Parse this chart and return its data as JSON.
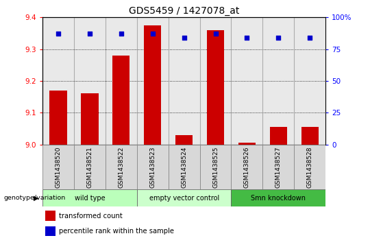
{
  "title": "GDS5459 / 1427078_at",
  "samples": [
    "GSM1438520",
    "GSM1438521",
    "GSM1438522",
    "GSM1438523",
    "GSM1438524",
    "GSM1438525",
    "GSM1438526",
    "GSM1438527",
    "GSM1438528"
  ],
  "bar_values": [
    9.17,
    9.16,
    9.28,
    9.375,
    9.03,
    9.36,
    9.005,
    9.055,
    9.055
  ],
  "percentile_values": [
    87,
    87,
    87,
    87,
    84,
    87,
    84,
    84,
    84
  ],
  "ymin": 9.0,
  "ymax": 9.4,
  "yticks": [
    9.0,
    9.1,
    9.2,
    9.3,
    9.4
  ],
  "right_yticks": [
    0,
    25,
    50,
    75,
    100
  ],
  "bar_color": "#cc0000",
  "dot_color": "#0000cc",
  "bar_width": 0.55,
  "groups": [
    {
      "label": "wild type",
      "start": 0,
      "end": 3,
      "color": "#bbffbb"
    },
    {
      "label": "empty vector control",
      "start": 3,
      "end": 6,
      "color": "#ccffcc"
    },
    {
      "label": "Smn knockdown",
      "start": 6,
      "end": 9,
      "color": "#44bb44"
    }
  ],
  "legend_items": [
    {
      "color": "#cc0000",
      "label": "transformed count"
    },
    {
      "color": "#0000cc",
      "label": "percentile rank within the sample"
    }
  ],
  "left_label": "genotype/variation",
  "bg_color": "#d8d8d8",
  "title_fontsize": 10,
  "tick_fontsize": 7.5,
  "sample_fontsize": 6.5
}
